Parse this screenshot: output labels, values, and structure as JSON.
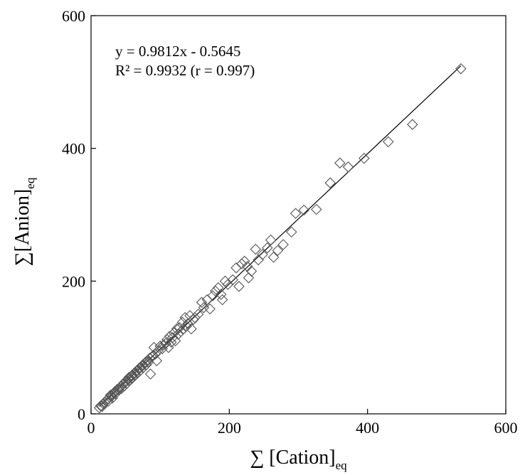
{
  "chart_data": {
    "type": "scatter",
    "xlabel_main": "∑ [Cation]",
    "xlabel_sub": "eq",
    "ylabel_main": "∑[Anion]",
    "ylabel_sub": "eq",
    "xlim": [
      0,
      600
    ],
    "ylim": [
      0,
      600
    ],
    "xticks": [
      0,
      200,
      400,
      600
    ],
    "yticks": [
      0,
      200,
      400,
      600
    ],
    "grid": false,
    "legend": "none",
    "marker": "diamond-open",
    "marker_color": "#555555",
    "line_color": "#000000",
    "annotations": {
      "equation": "y = 0.9812x - 0.5645",
      "r_squared": "R² = 0.9932 (r = 0.997)"
    },
    "trendline": {
      "slope": 0.9812,
      "intercept": -0.5645
    },
    "points": [
      [
        12,
        9
      ],
      [
        14,
        12
      ],
      [
        16,
        11
      ],
      [
        18,
        15
      ],
      [
        20,
        17
      ],
      [
        22,
        20
      ],
      [
        24,
        22
      ],
      [
        25,
        19
      ],
      [
        27,
        25
      ],
      [
        28,
        28
      ],
      [
        30,
        27
      ],
      [
        31,
        24
      ],
      [
        33,
        31
      ],
      [
        34,
        33
      ],
      [
        35,
        30
      ],
      [
        37,
        35
      ],
      [
        38,
        37
      ],
      [
        40,
        36
      ],
      [
        41,
        39
      ],
      [
        43,
        41
      ],
      [
        44,
        38
      ],
      [
        46,
        44
      ],
      [
        47,
        46
      ],
      [
        48,
        42
      ],
      [
        50,
        48
      ],
      [
        51,
        50
      ],
      [
        52,
        46
      ],
      [
        54,
        52
      ],
      [
        55,
        55
      ],
      [
        56,
        51
      ],
      [
        58,
        56
      ],
      [
        59,
        58
      ],
      [
        60,
        54
      ],
      [
        62,
        60
      ],
      [
        63,
        62
      ],
      [
        64,
        59
      ],
      [
        66,
        64
      ],
      [
        67,
        66
      ],
      [
        68,
        62
      ],
      [
        70,
        68
      ],
      [
        71,
        70
      ],
      [
        72,
        66
      ],
      [
        74,
        72
      ],
      [
        75,
        74
      ],
      [
        76,
        70
      ],
      [
        78,
        76
      ],
      [
        79,
        78
      ],
      [
        80,
        74
      ],
      [
        82,
        80
      ],
      [
        83,
        78
      ],
      [
        85,
        84
      ],
      [
        86,
        60
      ],
      [
        88,
        86
      ],
      [
        90,
        88
      ],
      [
        91,
        100
      ],
      [
        93,
        90
      ],
      [
        95,
        80
      ],
      [
        97,
        95
      ],
      [
        100,
        102
      ],
      [
        103,
        98
      ],
      [
        105,
        104
      ],
      [
        108,
        106
      ],
      [
        110,
        112
      ],
      [
        112,
        100
      ],
      [
        114,
        117
      ],
      [
        116,
        108
      ],
      [
        118,
        115
      ],
      [
        120,
        122
      ],
      [
        122,
        110
      ],
      [
        124,
        128
      ],
      [
        126,
        120
      ],
      [
        128,
        130
      ],
      [
        130,
        124
      ],
      [
        132,
        138
      ],
      [
        134,
        128
      ],
      [
        136,
        145
      ],
      [
        138,
        132
      ],
      [
        140,
        136
      ],
      [
        143,
        148
      ],
      [
        145,
        128
      ],
      [
        148,
        142
      ],
      [
        150,
        145
      ],
      [
        155,
        150
      ],
      [
        160,
        168
      ],
      [
        163,
        160
      ],
      [
        168,
        172
      ],
      [
        172,
        158
      ],
      [
        176,
        178
      ],
      [
        180,
        185
      ],
      [
        184,
        190
      ],
      [
        188,
        180
      ],
      [
        190,
        172
      ],
      [
        194,
        200
      ],
      [
        198,
        195
      ],
      [
        205,
        202
      ],
      [
        210,
        220
      ],
      [
        214,
        192
      ],
      [
        218,
        226
      ],
      [
        222,
        230
      ],
      [
        226,
        222
      ],
      [
        228,
        205
      ],
      [
        232,
        215
      ],
      [
        238,
        248
      ],
      [
        242,
        232
      ],
      [
        248,
        240
      ],
      [
        255,
        250
      ],
      [
        260,
        262
      ],
      [
        264,
        236
      ],
      [
        270,
        246
      ],
      [
        278,
        255
      ],
      [
        290,
        274
      ],
      [
        296,
        302
      ],
      [
        308,
        307
      ],
      [
        326,
        308
      ],
      [
        346,
        348
      ],
      [
        360,
        378
      ],
      [
        372,
        372
      ],
      [
        395,
        385
      ],
      [
        430,
        410
      ],
      [
        465,
        436
      ],
      [
        535,
        520
      ]
    ]
  }
}
